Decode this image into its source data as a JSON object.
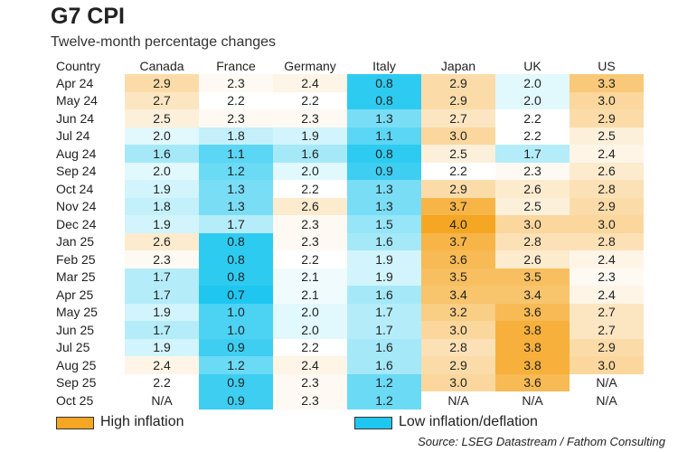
{
  "title": "G7 CPI",
  "subtitle": "Twelve-month percentage changes",
  "legend": {
    "high": {
      "label": "High inflation",
      "color": "#f5a623"
    },
    "low": {
      "label": "Low inflation/deflation",
      "color": "#1fc7f0"
    }
  },
  "source": "Source: LSEG Datastream / Fathom Consulting",
  "chart_data": {
    "type": "heatmap",
    "title": "G7 CPI",
    "subtitle": "Twelve-month percentage changes",
    "row_header": "Country",
    "columns": [
      "Canada",
      "France",
      "Germany",
      "Italy",
      "Japan",
      "UK",
      "US"
    ],
    "rows": [
      "Apr 24",
      "May 24",
      "Jun 24",
      "Jul 24",
      "Aug 24",
      "Sep 24",
      "Oct 24",
      "Nov 24",
      "Dec 24",
      "Jan 25",
      "Feb 25",
      "Mar 25",
      "Apr 25",
      "May 25",
      "Jun 25",
      "Jul 25",
      "Aug 25",
      "Sep 25",
      "Oct 25"
    ],
    "values": [
      [
        2.9,
        2.3,
        2.4,
        0.8,
        2.9,
        2.0,
        3.3
      ],
      [
        2.7,
        2.2,
        2.2,
        0.8,
        2.9,
        2.0,
        3.0
      ],
      [
        2.5,
        2.3,
        2.3,
        1.3,
        2.7,
        2.2,
        2.9
      ],
      [
        2.0,
        1.8,
        1.9,
        1.1,
        3.0,
        2.2,
        2.5
      ],
      [
        1.6,
        1.1,
        1.6,
        0.8,
        2.5,
        1.7,
        2.4
      ],
      [
        2.0,
        1.2,
        2.0,
        0.9,
        2.2,
        2.3,
        2.6
      ],
      [
        1.9,
        1.3,
        2.2,
        1.3,
        2.9,
        2.6,
        2.8
      ],
      [
        1.8,
        1.3,
        2.6,
        1.3,
        3.7,
        2.5,
        2.9
      ],
      [
        1.9,
        1.7,
        2.3,
        1.5,
        4.0,
        3.0,
        3.0
      ],
      [
        2.6,
        0.8,
        2.3,
        1.6,
        3.7,
        2.8,
        2.8
      ],
      [
        2.3,
        0.8,
        2.2,
        1.9,
        3.6,
        2.6,
        2.4
      ],
      [
        1.7,
        0.8,
        2.1,
        1.9,
        3.5,
        3.5,
        2.3
      ],
      [
        1.7,
        0.7,
        2.1,
        1.6,
        3.4,
        3.4,
        2.4
      ],
      [
        1.9,
        1.0,
        2.0,
        1.7,
        3.2,
        3.6,
        2.7
      ],
      [
        1.7,
        1.0,
        2.0,
        1.7,
        3.0,
        3.8,
        2.7
      ],
      [
        1.9,
        0.9,
        2.2,
        1.6,
        2.8,
        3.8,
        2.9
      ],
      [
        2.4,
        1.2,
        2.4,
        1.6,
        2.9,
        3.8,
        3.0
      ],
      [
        2.2,
        0.9,
        2.3,
        1.2,
        3.0,
        3.6,
        "N/A"
      ],
      [
        "N/A",
        0.9,
        2.3,
        1.2,
        "N/A",
        "N/A",
        "N/A"
      ]
    ],
    "missing_label": "N/A",
    "color_scale": {
      "low": "#1fc7f0",
      "mid": "#ffffff",
      "high": "#f5a623",
      "low_value": 0.7,
      "mid_value": 2.2,
      "high_value": 4.0
    }
  }
}
